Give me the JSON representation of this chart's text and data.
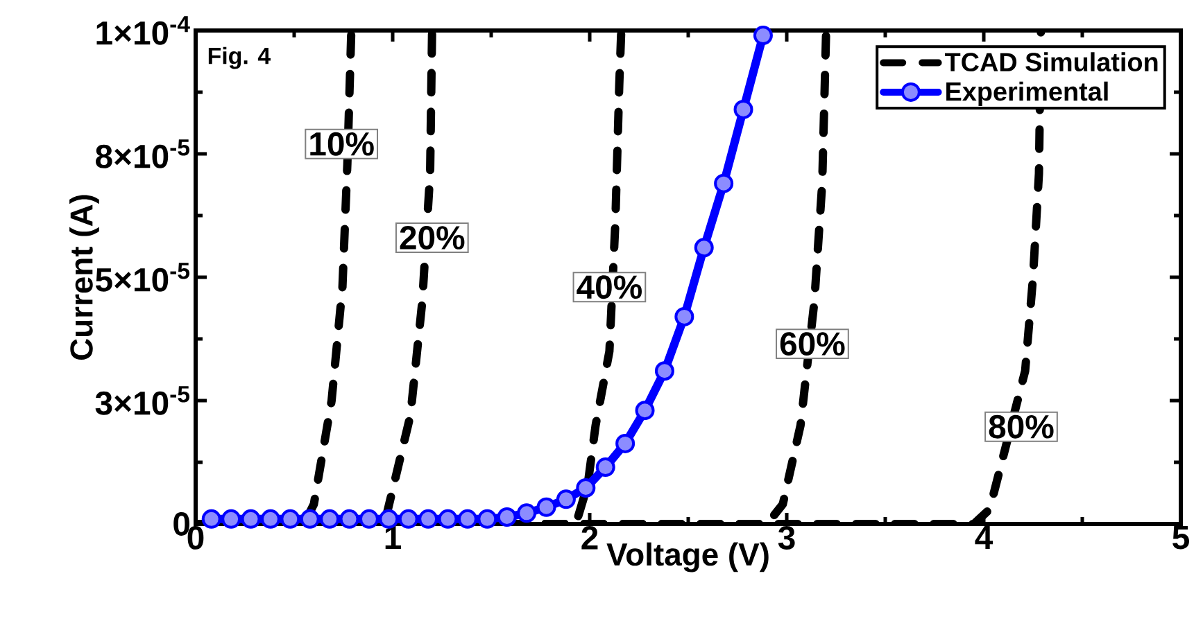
{
  "chart_data": {
    "type": "line",
    "xlabel": "Voltage (V)",
    "ylabel": "Current (A)",
    "xlim": [
      0,
      5
    ],
    "ylim": [
      0,
      0.0001
    ],
    "xticks": [
      0,
      1,
      2,
      3,
      4,
      5
    ],
    "yticks": [
      0,
      {
        "value": 2.5e-05,
        "label": "3×10$^{-5}$"
      },
      {
        "value": 5e-05,
        "label": "5×10$^{-5}$"
      },
      {
        "value": 7.5e-05,
        "label": "8×10$^{-5}$"
      },
      {
        "value": 0.0001,
        "label": "1×10$^{-4}$"
      }
    ],
    "legend": "top right",
    "grid": false,
    "series": [
      {
        "name": "TCAD Simulation",
        "color": "#000000",
        "line_style": "dashed",
        "marker": "none",
        "x": [
          0,
          0.55,
          0.6,
          0.69,
          0.745,
          0.77,
          0.79
        ],
        "values": [
          0,
          0,
          4e-06,
          2.5e-05,
          4.8e-05,
          7.3e-05,
          0.0001
        ]
      },
      {
        "color": "#000000",
        "line_style": "dashed",
        "marker": "none",
        "x": [
          0,
          0.93,
          0.97,
          1.09,
          1.15,
          1.19,
          1.2
        ],
        "values": [
          0,
          0,
          2e-06,
          2.2e-05,
          4.5e-05,
          7.1e-05,
          0.0001
        ]
      },
      {
        "color": "#000000",
        "line_style": "dashed",
        "marker": "none",
        "x": [
          0,
          1.93,
          1.99,
          2.03,
          2.1,
          2.13,
          2.15,
          2.16
        ],
        "values": [
          0,
          0,
          8e-06,
          2e-05,
          3.5e-05,
          6.1e-05,
          8.9e-05,
          0.0001
        ]
      },
      {
        "color": "#000000",
        "line_style": "dashed",
        "marker": "none",
        "x": [
          0,
          2.9,
          2.98,
          3.07,
          3.14,
          3.18,
          3.2
        ],
        "values": [
          0,
          0,
          4e-06,
          2e-05,
          4.5e-05,
          6.9e-05,
          0.0001
        ]
      },
      {
        "color": "#000000",
        "line_style": "dashed",
        "marker": "none",
        "x": [
          0,
          3.95,
          4.03,
          4.21,
          4.25,
          4.28,
          4.29
        ],
        "values": [
          0,
          0,
          3e-06,
          3.1e-05,
          5e-05,
          7.1e-05,
          0.0001
        ]
      },
      {
        "name": "Experimental",
        "color": "#0000ff",
        "line_style": "solid",
        "marker": "circle",
        "x": [
          0.08,
          0.18,
          0.28,
          0.38,
          0.48,
          0.58,
          0.68,
          0.78,
          0.88,
          0.98,
          1.08,
          1.18,
          1.28,
          1.38,
          1.48,
          1.58,
          1.68,
          1.78,
          1.88,
          1.98,
          2.08,
          2.18,
          2.28,
          2.38,
          2.48,
          2.58,
          2.68,
          2.78,
          2.88
        ],
        "values": [
          1e-06,
          1e-06,
          1e-06,
          1e-06,
          1e-06,
          1e-06,
          1e-06,
          1e-06,
          1e-06,
          1e-06,
          1e-06,
          1e-06,
          1e-06,
          1e-06,
          1e-06,
          1.4e-06,
          2.2e-06,
          3.4e-06,
          5e-06,
          7.3e-06,
          1.15e-05,
          1.63e-05,
          2.3e-05,
          3.1e-05,
          4.2e-05,
          5.6e-05,
          6.9e-05,
          8.4e-05,
          9.9e-05
        ]
      }
    ],
    "annotations": [
      "Fig. 4",
      {
        "text": "10%",
        "x": 0.74,
        "y": 7.7e-05
      },
      {
        "text": "20%",
        "x": 1.2,
        "y": 5.8e-05
      },
      {
        "text": "40%",
        "x": 2.1,
        "y": 4.8e-05
      },
      {
        "text": "60%",
        "x": 3.13,
        "y": 3.65e-05
      },
      {
        "text": "80%",
        "x": 4.19,
        "y": 1.97e-05
      }
    ]
  }
}
